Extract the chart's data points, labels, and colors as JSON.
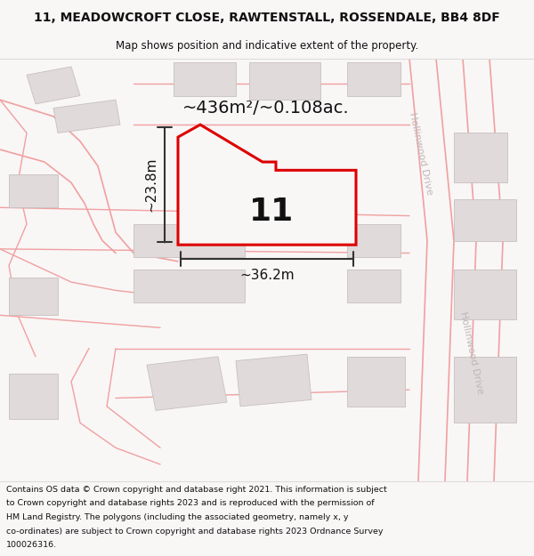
{
  "title_line1": "11, MEADOWCROFT CLOSE, RAWTENSTALL, ROSSENDALE, BB4 8DF",
  "title_line2": "Map shows position and indicative extent of the property.",
  "area_text": "~436m²/~0.108ac.",
  "width_text": "~36.2m",
  "height_text": "~23.8m",
  "number_text": "11",
  "road_label": "Hollinwood Drive",
  "footer_lines": [
    "Contains OS data © Crown copyright and database right 2021. This information is subject",
    "to Crown copyright and database rights 2023 and is reproduced with the permission of",
    "HM Land Registry. The polygons (including the associated geometry, namely x, y",
    "co-ordinates) are subject to Crown copyright and database rights 2023 Ordnance Survey",
    "100026316."
  ],
  "bg_color": "#f9f6f6",
  "map_bg": "#f9f6f6",
  "building_fill": "#e0dada",
  "building_edge": "#c8c0c0",
  "road_line_color": "#f0a0a0",
  "road_fill": "#ffffff",
  "highlight_color": "#dd0000",
  "highlight_fill": "#f9f6f6",
  "dim_line_color": "#333333",
  "text_color": "#111111",
  "road_label_color": "#c0b8b8",
  "footer_bg": "#ffffff",
  "title_bg": "#ffffff"
}
